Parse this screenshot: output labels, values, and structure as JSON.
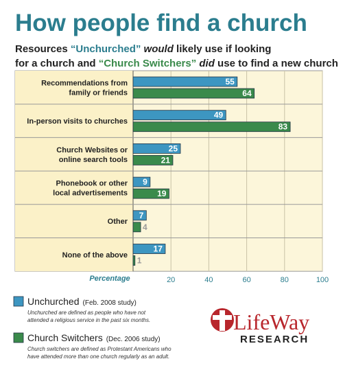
{
  "chart_data": {
    "type": "barh",
    "title": "How people find a church",
    "subtitle_lines": [
      [
        "Resources ",
        "“Unchurched”",
        " would",
        " likely use if looking"
      ],
      [
        "for a church and ",
        "“Church Switchers”",
        " did",
        " use to find a new church"
      ]
    ],
    "categories": [
      "Recommendations from\nfamily or friends",
      "In-person visits to churches",
      "Church Websites or\nonline search tools",
      "Phonebook or other\nlocal advertisements",
      "Other",
      "None of the above"
    ],
    "series": [
      {
        "name": "Unchurched",
        "study": "(Feb. 2008 study)",
        "note": "Unchurched are defined as people who have not\nattended a religious service in the past six months.",
        "color": "#3d96c1",
        "values": [
          55,
          49,
          25,
          9,
          7,
          17
        ]
      },
      {
        "name": "Church Switchers",
        "study": "(Dec. 2006 study)",
        "note": "Church switchers are defined as Protestant Americans who\nhave attended more than one church regularly as an adult.",
        "color": "#3a8a4b",
        "values": [
          64,
          83,
          21,
          19,
          4,
          1
        ]
      }
    ],
    "xlabel": "Percentage",
    "xlim": [
      0,
      100
    ],
    "xticks": [
      20,
      40,
      60,
      80,
      100
    ],
    "grid": true,
    "logo": {
      "name": "LifeWay",
      "sub": "RESEARCH"
    }
  }
}
